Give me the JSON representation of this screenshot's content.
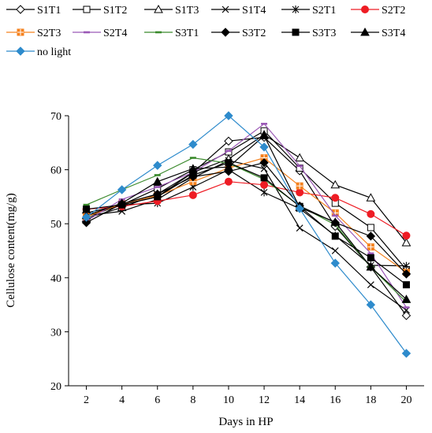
{
  "chart_data": {
    "type": "line",
    "title": "",
    "xlabel": "Days in HP",
    "ylabel": "Cellulose content(mg/g)",
    "x": [
      2,
      4,
      6,
      8,
      10,
      12,
      14,
      16,
      18,
      20
    ],
    "x_tick_labels": [
      "2",
      "4",
      "6",
      "8",
      "10",
      "12",
      "14",
      "16",
      "18",
      "20"
    ],
    "xlim": [
      1,
      21
    ],
    "ylim": [
      20,
      70
    ],
    "y_ticks": [
      20,
      30,
      40,
      50,
      60,
      70
    ],
    "y_tick_labels": [
      "20",
      "30",
      "40",
      "50",
      "60",
      "70"
    ],
    "grid": false,
    "legend_position": "top",
    "series": [
      {
        "name": "S1T1",
        "color": "#000000",
        "marker": "diamond-open",
        "values": [
          52.0,
          53.5,
          55.0,
          59.5,
          65.3,
          66.0,
          59.8,
          49.5,
          42.0,
          33.0
        ]
      },
      {
        "name": "S1T2",
        "color": "#000000",
        "marker": "square-open",
        "values": [
          51.5,
          53.5,
          56.5,
          60.0,
          63.3,
          67.2,
          60.3,
          53.8,
          49.3,
          41.5
        ]
      },
      {
        "name": "S1T3",
        "color": "#000000",
        "marker": "triangle-open",
        "values": [
          51.0,
          53.0,
          55.5,
          59.5,
          62.0,
          66.5,
          62.2,
          57.2,
          54.8,
          46.5
        ]
      },
      {
        "name": "S1T4",
        "color": "#000000",
        "marker": "x",
        "values": [
          51.5,
          52.3,
          54.5,
          58.5,
          61.7,
          60.2,
          49.2,
          45.0,
          38.7,
          34.0
        ]
      },
      {
        "name": "S2T1",
        "color": "#000000",
        "marker": "star",
        "values": [
          51.3,
          53.5,
          53.8,
          56.8,
          60.0,
          55.8,
          52.8,
          47.8,
          42.3,
          42.2
        ]
      },
      {
        "name": "S2T2",
        "color": "#ee1c24",
        "marker": "circle",
        "values": [
          52.7,
          53.2,
          54.2,
          55.3,
          57.8,
          57.2,
          55.8,
          54.8,
          51.8,
          47.8
        ]
      },
      {
        "name": "S2T3",
        "color": "#f5821f",
        "marker": "square-plus",
        "values": [
          51.3,
          53.7,
          55.2,
          57.8,
          60.3,
          62.2,
          57.0,
          52.0,
          45.7,
          41.0
        ]
      },
      {
        "name": "S2T4",
        "color": "#9b59b6",
        "marker": "dash",
        "values": [
          50.5,
          54.5,
          56.8,
          59.5,
          63.5,
          68.5,
          60.7,
          51.5,
          44.5,
          34.5
        ]
      },
      {
        "name": "S3T1",
        "color": "#3a8a2c",
        "marker": "dash",
        "values": [
          53.5,
          56.3,
          59.0,
          62.2,
          61.2,
          58.2,
          53.3,
          49.8,
          42.0,
          35.5
        ]
      },
      {
        "name": "S3T2",
        "color": "#000000",
        "marker": "diamond",
        "values": [
          50.2,
          53.7,
          55.5,
          58.7,
          59.7,
          61.3,
          53.3,
          50.2,
          47.7,
          40.7
        ]
      },
      {
        "name": "S3T3",
        "color": "#000000",
        "marker": "square",
        "values": [
          52.7,
          53.5,
          55.0,
          59.0,
          61.3,
          58.5,
          53.2,
          47.7,
          43.7,
          38.7
        ]
      },
      {
        "name": "S3T4",
        "color": "#000000",
        "marker": "triangle",
        "values": [
          51.5,
          53.8,
          57.8,
          60.2,
          60.5,
          66.3,
          53.0,
          50.3,
          42.0,
          36.0
        ]
      },
      {
        "name": "no light",
        "color": "#2e8bcc",
        "marker": "diamond",
        "values": [
          51.2,
          56.3,
          60.8,
          64.7,
          70.0,
          64.2,
          52.8,
          42.7,
          35.0,
          26.0
        ]
      }
    ]
  }
}
